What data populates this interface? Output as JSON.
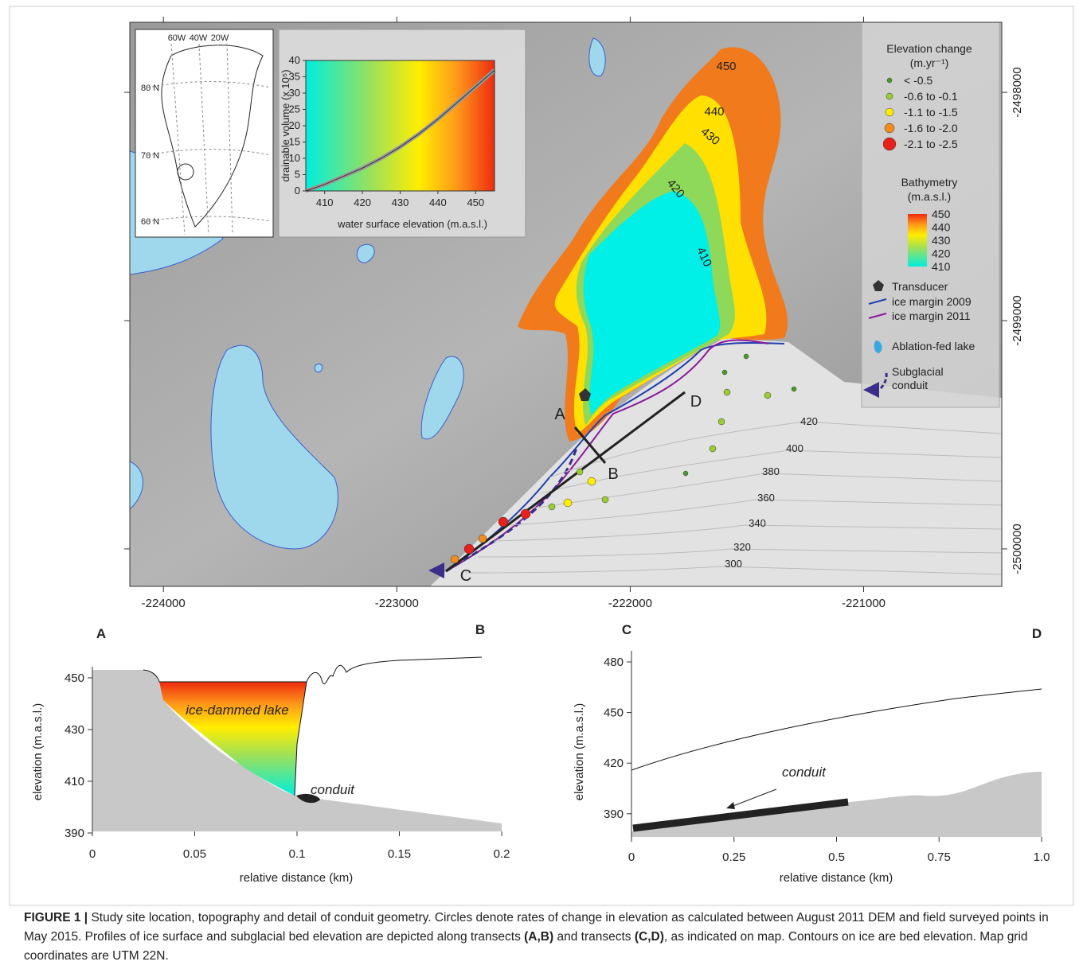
{
  "map": {
    "xlim": [
      -224144,
      -220408
    ],
    "ylim": [
      -2500164,
      -2497693
    ],
    "xticks": [
      -224000,
      -223000,
      -222000,
      -221000
    ],
    "yticks": [
      -2498000,
      -2499000,
      -2500000
    ],
    "lake_contours": [
      450,
      440,
      430,
      420,
      410
    ],
    "bed_contours": [
      420,
      400,
      380,
      360,
      340,
      320,
      300
    ],
    "transect_labels": [
      "A",
      "B",
      "C",
      "D"
    ],
    "legend": {
      "title": "Elevation change",
      "unit": "(m.yr⁻¹)",
      "items": [
        {
          "label": "< -0.5",
          "color": "#4a9a2a"
        },
        {
          "label": "-0.6 to -0.1",
          "color": "#9acd32"
        },
        {
          "label": "-1.1 to -1.5",
          "color": "#ffee00"
        },
        {
          "label": "-1.6 to -2.0",
          "color": "#f28c1e"
        },
        {
          "label": "-2.1 to -2.5",
          "color": "#e8201c"
        }
      ],
      "bathymetry_title": "Bathymetry",
      "bathymetry_unit": "(m.a.s.l.)",
      "bathymetry_ticks": [
        450,
        440,
        430,
        420,
        410
      ],
      "symbols": [
        "Transducer",
        "ice margin 2009",
        "ice margin 2011",
        "Ablation-fed lake",
        "Subglacial conduit"
      ]
    }
  },
  "inset_map": {
    "longitudes": [
      "60W",
      "40W",
      "20W"
    ],
    "latitudes": [
      "80 N",
      "70 N",
      "60 N"
    ]
  },
  "inset_chart": {
    "ylabel": "drainable volume (x 10⁵)",
    "xlabel": "water surface elevation (m.a.s.l.)",
    "xlim": [
      405,
      455
    ],
    "ylim": [
      0,
      40
    ],
    "xticks": [
      410,
      420,
      430,
      440,
      450
    ],
    "yticks": [
      0,
      5,
      10,
      15,
      20,
      25,
      30,
      35,
      40
    ],
    "x": [
      405,
      410,
      415,
      420,
      425,
      430,
      435,
      440,
      445,
      450,
      455
    ],
    "y": [
      0,
      2,
      4.5,
      7,
      10,
      13.5,
      17.5,
      22,
      27,
      32,
      37
    ]
  },
  "profile_ab": {
    "start_label": "A",
    "end_label": "B",
    "ylabel": "elevation (m.a.s.l.)",
    "xlabel": "relative distance (km)",
    "xlim": [
      0,
      0.2
    ],
    "ylim": [
      390,
      450
    ],
    "xticks": [
      0,
      0.05,
      0.1,
      0.15,
      0.2
    ],
    "yticks": [
      390,
      410,
      430,
      450
    ],
    "lake_label": "ice-dammed lake",
    "conduit_label": "conduit"
  },
  "profile_cd": {
    "start_label": "C",
    "end_label": "D",
    "ylabel": "elevation (m.a.s.l.)",
    "xlabel": "relative distance (km)",
    "xlim": [
      0,
      1
    ],
    "ylim": [
      390,
      480
    ],
    "xticks": [
      0,
      0.25,
      0.5,
      0.75,
      {
        "value": 1,
        "label": "1.0"
      }
    ],
    "yticks": [
      390,
      420,
      450,
      480
    ],
    "conduit_label": "conduit"
  },
  "caption": {
    "label": "FIGURE 1 |",
    "text1": " Study site location, topography and detail of conduit geometry. Circles denote rates of change in elevation as calculated between August 2011 DEM and field surveyed points in May 2015. Profiles of ice surface and subglacial bed elevation are depicted along transects ",
    "ref1": "(A,B)",
    "text2": " and transects ",
    "ref2": "(C,D)",
    "text3": ", as indicated on map. Contours on ice are bed elevation. Map grid coordinates are UTM 22N."
  }
}
